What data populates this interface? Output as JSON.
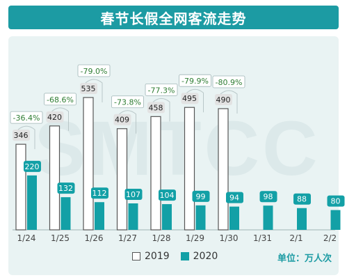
{
  "title": "春节长假全网客流走势",
  "unit_label": "单位：万人次",
  "watermark": "SMTCC",
  "colors": {
    "title_bg": "#1c9ba3",
    "panel_bg": "#e9f3f3",
    "bar_2020": "#13a0a6",
    "bar_2019_outline": "#555555",
    "label_2019_bg": "#e2e2e2",
    "label_2020_bg": "#13a0a6",
    "change_text": "#2e7d32"
  },
  "chart_data": {
    "type": "bar",
    "title": "春节长假全网客流走势",
    "categories": [
      "1/24",
      "1/25",
      "1/26",
      "1/27",
      "1/28",
      "1/29",
      "1/30",
      "1/31",
      "2/1",
      "2/2"
    ],
    "series": [
      {
        "name": "2019",
        "values": [
          346,
          420,
          535,
          409,
          458,
          495,
          490,
          null,
          null,
          null
        ]
      },
      {
        "name": "2020",
        "values": [
          220,
          132,
          112,
          107,
          104,
          99,
          94,
          98,
          88,
          80
        ]
      }
    ],
    "value_labels_2019": [
      "346",
      "420",
      "535",
      "409",
      "458",
      "495",
      "490",
      "",
      "",
      ""
    ],
    "value_labels_2020": [
      "220",
      "132",
      "112",
      "107",
      "104",
      "99",
      "94",
      "98",
      "88",
      "80"
    ],
    "change_labels": [
      "-36.4%",
      "-68.6%",
      "-79.0%",
      "-73.8%",
      "-77.3%",
      "-79.9%",
      "-80.9%",
      "",
      "",
      ""
    ],
    "legend": [
      "2019",
      "2020"
    ],
    "legend_position": "bottom",
    "ylim": [
      0,
      560
    ],
    "grid": false
  }
}
